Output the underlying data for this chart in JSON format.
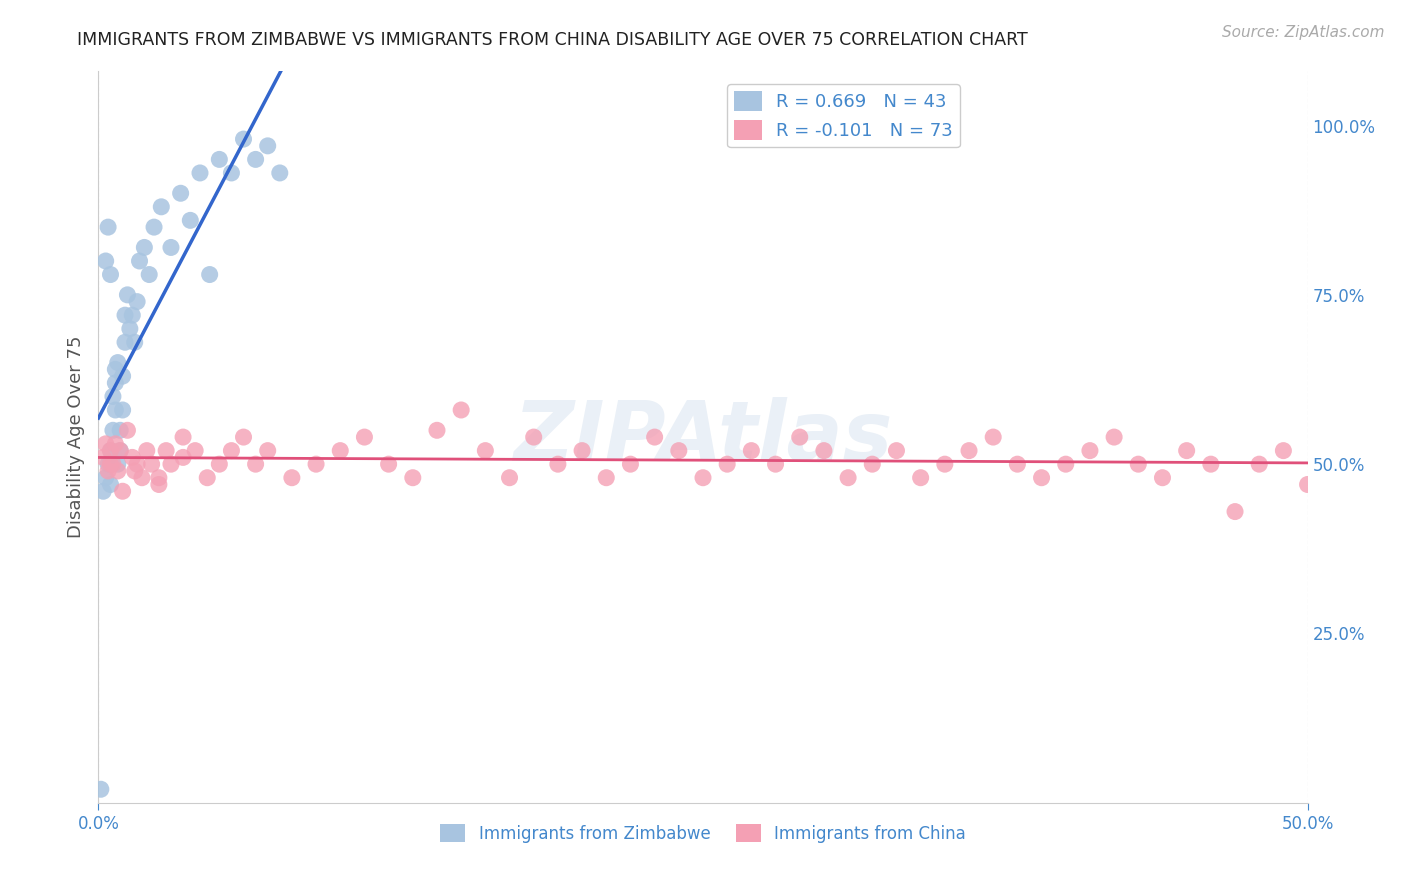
{
  "title": "IMMIGRANTS FROM ZIMBABWE VS IMMIGRANTS FROM CHINA DISABILITY AGE OVER 75 CORRELATION CHART",
  "source": "Source: ZipAtlas.com",
  "ylabel": "Disability Age Over 75",
  "xlim": [
    0,
    0.5
  ],
  "ylim": [
    0,
    1.08
  ],
  "yticks_right": [
    0.25,
    0.5,
    0.75,
    1.0
  ],
  "ytick_labels_right": [
    "25.0%",
    "50.0%",
    "75.0%",
    "100.0%"
  ],
  "xticks": [
    0.0,
    0.5
  ],
  "xtick_labels": [
    "0.0%",
    "50.0%"
  ],
  "zimbabwe_color": "#a8c4e0",
  "china_color": "#f4a0b4",
  "zimbabwe_line_color": "#3366cc",
  "china_line_color": "#e0507a",
  "R_zimbabwe": 0.669,
  "N_zimbabwe": 43,
  "R_china": -0.101,
  "N_china": 73,
  "legend_label_zimbabwe": "Immigrants from Zimbabwe",
  "legend_label_china": "Immigrants from China",
  "watermark": "ZIPAtlas",
  "background_color": "#ffffff",
  "grid_color": "#cccccc",
  "axis_color": "#4488cc",
  "zimbabwe_x": [
    0.001,
    0.002,
    0.003,
    0.004,
    0.005,
    0.005,
    0.006,
    0.007,
    0.007,
    0.008,
    0.008,
    0.009,
    0.009,
    0.01,
    0.01,
    0.011,
    0.011,
    0.012,
    0.013,
    0.014,
    0.015,
    0.016,
    0.017,
    0.019,
    0.021,
    0.023,
    0.026,
    0.03,
    0.034,
    0.038,
    0.042,
    0.046,
    0.05,
    0.055,
    0.06,
    0.065,
    0.07,
    0.075,
    0.003,
    0.004,
    0.005,
    0.006,
    0.007
  ],
  "zimbabwe_y": [
    0.02,
    0.46,
    0.48,
    0.5,
    0.47,
    0.52,
    0.55,
    0.58,
    0.62,
    0.65,
    0.5,
    0.52,
    0.55,
    0.58,
    0.63,
    0.68,
    0.72,
    0.75,
    0.7,
    0.72,
    0.68,
    0.74,
    0.8,
    0.82,
    0.78,
    0.85,
    0.88,
    0.82,
    0.9,
    0.86,
    0.93,
    0.78,
    0.95,
    0.93,
    0.98,
    0.95,
    0.97,
    0.93,
    0.8,
    0.85,
    0.78,
    0.6,
    0.64
  ],
  "china_x": [
    0.002,
    0.003,
    0.004,
    0.005,
    0.006,
    0.007,
    0.008,
    0.009,
    0.012,
    0.014,
    0.016,
    0.018,
    0.02,
    0.022,
    0.025,
    0.028,
    0.03,
    0.035,
    0.04,
    0.045,
    0.05,
    0.055,
    0.06,
    0.065,
    0.07,
    0.08,
    0.09,
    0.1,
    0.11,
    0.12,
    0.13,
    0.14,
    0.15,
    0.16,
    0.17,
    0.18,
    0.19,
    0.2,
    0.21,
    0.22,
    0.23,
    0.24,
    0.25,
    0.26,
    0.27,
    0.28,
    0.29,
    0.3,
    0.31,
    0.32,
    0.33,
    0.34,
    0.35,
    0.36,
    0.37,
    0.38,
    0.39,
    0.4,
    0.41,
    0.42,
    0.43,
    0.44,
    0.45,
    0.46,
    0.47,
    0.48,
    0.49,
    0.5,
    0.005,
    0.01,
    0.015,
    0.025,
    0.035
  ],
  "china_y": [
    0.51,
    0.53,
    0.49,
    0.52,
    0.5,
    0.53,
    0.49,
    0.52,
    0.55,
    0.51,
    0.5,
    0.48,
    0.52,
    0.5,
    0.48,
    0.52,
    0.5,
    0.54,
    0.52,
    0.48,
    0.5,
    0.52,
    0.54,
    0.5,
    0.52,
    0.48,
    0.5,
    0.52,
    0.54,
    0.5,
    0.48,
    0.55,
    0.58,
    0.52,
    0.48,
    0.54,
    0.5,
    0.52,
    0.48,
    0.5,
    0.54,
    0.52,
    0.48,
    0.5,
    0.52,
    0.5,
    0.54,
    0.52,
    0.48,
    0.5,
    0.52,
    0.48,
    0.5,
    0.52,
    0.54,
    0.5,
    0.48,
    0.5,
    0.52,
    0.54,
    0.5,
    0.48,
    0.52,
    0.5,
    0.43,
    0.5,
    0.52,
    0.47,
    0.5,
    0.46,
    0.49,
    0.47,
    0.51
  ]
}
